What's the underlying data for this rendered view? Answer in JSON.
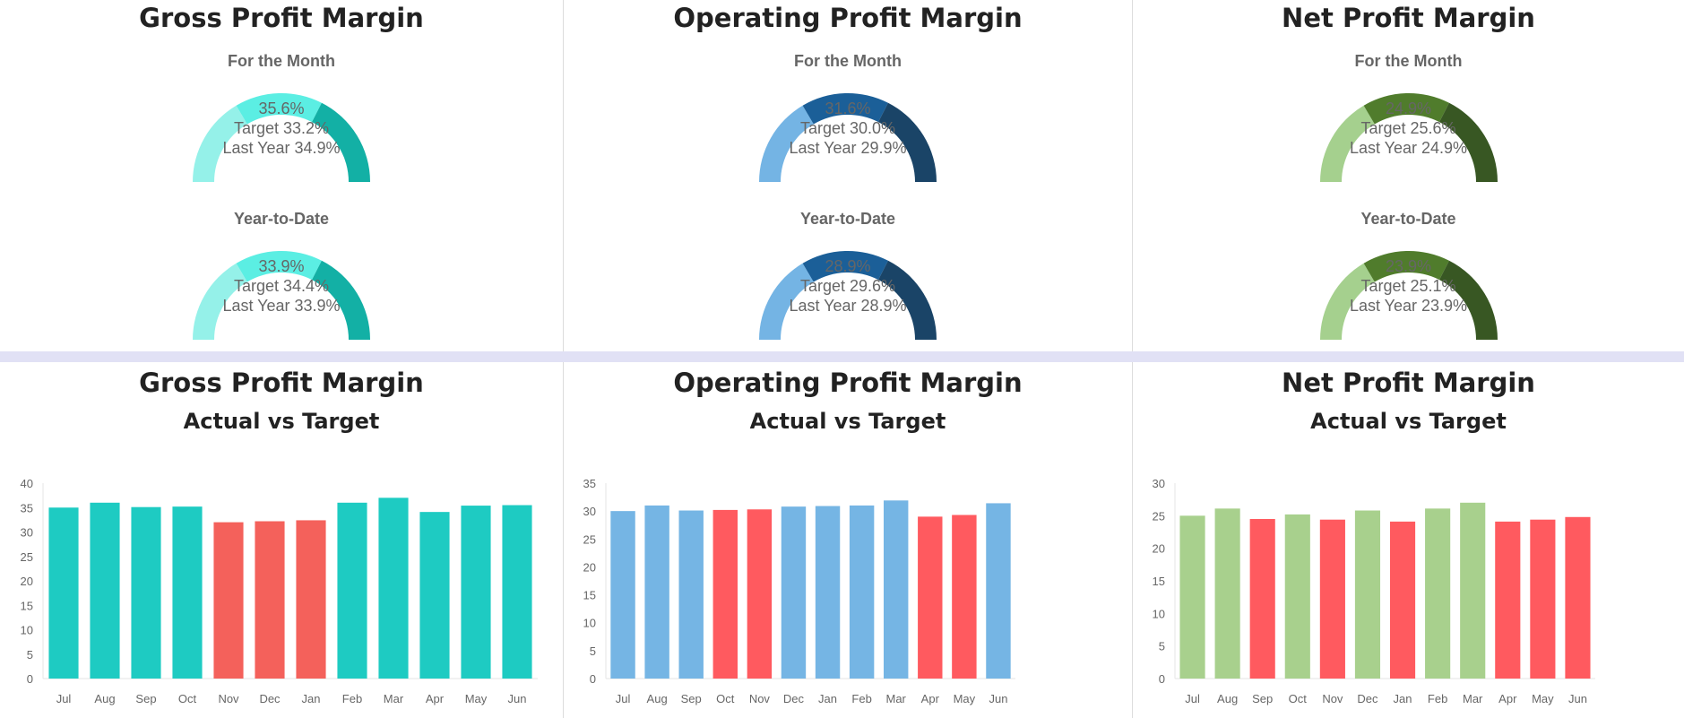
{
  "months": [
    "Jul",
    "Aug",
    "Sep",
    "Oct",
    "Nov",
    "Dec",
    "Jan",
    "Feb",
    "Mar",
    "Apr",
    "May",
    "Jun"
  ],
  "gauge_panels": [
    {
      "title": "Gross Profit Margin",
      "colors": [
        "#95f1e9",
        "#5beee3",
        "#13b0a5"
      ],
      "month": {
        "label": "For the Month",
        "value": "35.6%",
        "target": "Target 33.2%",
        "last_year": "Last Year 34.9%"
      },
      "ytd": {
        "label": "Year-to-Date",
        "value": "33.9%",
        "target": "Target 34.4%",
        "last_year": "Last Year 33.9%"
      }
    },
    {
      "title": "Operating Profit Margin",
      "colors": [
        "#74b4e4",
        "#1b5f98",
        "#1a4467"
      ],
      "month": {
        "label": "For the Month",
        "value": "31.6%",
        "target": "Target 30.0%",
        "last_year": "Last Year 29.9%"
      },
      "ytd": {
        "label": "Year-to-Date",
        "value": "28.9%",
        "target": "Target 29.6%",
        "last_year": "Last Year 28.9%"
      }
    },
    {
      "title": "Net Profit Margin",
      "colors": [
        "#a5d08e",
        "#507c2c",
        "#385723"
      ],
      "month": {
        "label": "For the Month",
        "value": "24.9%",
        "target": "Target 25.6%",
        "last_year": "Last Year 24.9%"
      },
      "ytd": {
        "label": "Year-to-Date",
        "value": "23.9%",
        "target": "Target 25.1%",
        "last_year": "Last Year 23.9%"
      }
    }
  ],
  "chart_data": [
    {
      "type": "bar",
      "title": "Gross Profit Margin",
      "subtitle": "Actual vs Target",
      "categories": [
        "Jul",
        "Aug",
        "Sep",
        "Oct",
        "Nov",
        "Dec",
        "Jan",
        "Feb",
        "Mar",
        "Apr",
        "May",
        "Jun"
      ],
      "values": [
        35.0,
        36.0,
        35.1,
        35.2,
        32.0,
        32.2,
        32.4,
        36.0,
        37.0,
        34.1,
        35.4,
        35.5
      ],
      "below_target": [
        false,
        false,
        false,
        false,
        true,
        true,
        true,
        false,
        false,
        false,
        false,
        false
      ],
      "colors": {
        "on_target": "#1ecbc2",
        "below_target": "#f4615b"
      },
      "ylim": [
        0,
        40
      ],
      "yticks": [
        0,
        5,
        10,
        15,
        20,
        25,
        30,
        35,
        40
      ],
      "grid": false,
      "xlabel": "",
      "ylabel": ""
    },
    {
      "type": "bar",
      "title": "Operating Profit Margin",
      "subtitle": "Actual vs Target",
      "categories": [
        "Jul",
        "Aug",
        "Sep",
        "Oct",
        "Nov",
        "Dec",
        "Jan",
        "Feb",
        "Mar",
        "Apr",
        "May",
        "Jun"
      ],
      "values": [
        30.0,
        31.0,
        30.1,
        30.2,
        30.3,
        30.8,
        30.9,
        31.0,
        31.9,
        29.0,
        29.3,
        31.4
      ],
      "below_target": [
        false,
        false,
        false,
        true,
        true,
        false,
        false,
        false,
        false,
        true,
        true,
        false
      ],
      "colors": {
        "on_target": "#75b5e4",
        "below_target": "#ff5a5f"
      },
      "ylim": [
        0,
        35
      ],
      "yticks": [
        0,
        5,
        10,
        15,
        20,
        25,
        30,
        35
      ],
      "grid": false,
      "xlabel": "",
      "ylabel": ""
    },
    {
      "type": "bar",
      "title": "Net Profit Margin",
      "subtitle": "Actual vs Target",
      "categories": [
        "Jul",
        "Aug",
        "Sep",
        "Oct",
        "Nov",
        "Dec",
        "Jan",
        "Feb",
        "Mar",
        "Apr",
        "May",
        "Jun"
      ],
      "values": [
        25.0,
        26.1,
        24.5,
        25.2,
        24.4,
        25.8,
        24.1,
        26.1,
        27.0,
        24.1,
        24.4,
        24.8
      ],
      "below_target": [
        false,
        false,
        true,
        false,
        true,
        false,
        true,
        false,
        false,
        true,
        true,
        true
      ],
      "colors": {
        "on_target": "#a8d08d",
        "below_target": "#ff5a5f"
      },
      "ylim": [
        0,
        30
      ],
      "yticks": [
        0,
        5,
        10,
        15,
        20,
        25,
        30
      ],
      "grid": false,
      "xlabel": "",
      "ylabel": ""
    }
  ]
}
